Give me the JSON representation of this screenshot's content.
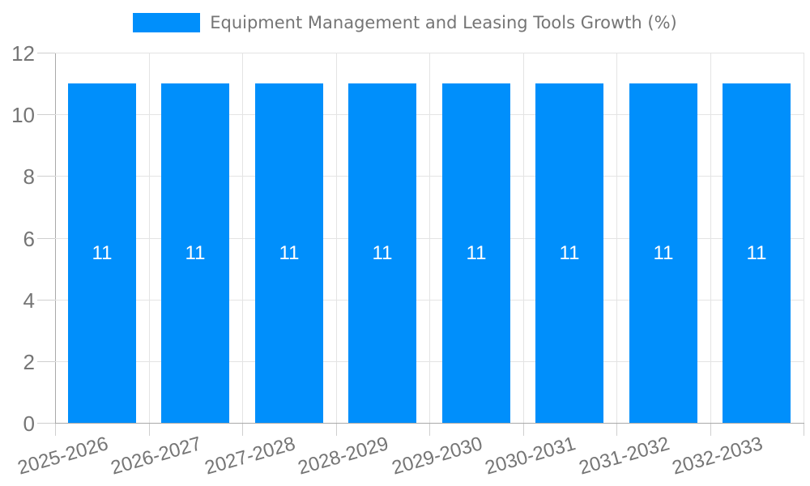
{
  "chart_data": {
    "type": "bar",
    "title": "Equipment Management and Leasing Tools Growth (%)",
    "legend": [
      "Equipment Management and Leasing Tools Growth (%)"
    ],
    "legend_position": "top",
    "categories": [
      "2025-2026",
      "2026-2027",
      "2027-2028",
      "2028-2029",
      "2029-2030",
      "2030-2031",
      "2031-2032",
      "2032-2033"
    ],
    "values": [
      11,
      11,
      11,
      11,
      11,
      11,
      11,
      11
    ],
    "xlabel": "",
    "ylabel": "",
    "ylim": [
      0,
      12
    ],
    "yticks": [
      0,
      2,
      4,
      6,
      8,
      10,
      12
    ],
    "grid": true,
    "bar_value_labels_shown": true,
    "colors": {
      "bar": "#008ffb",
      "value_text": "#ffffff",
      "axis_text": "#757575",
      "legend_text": "#757575",
      "gridline": "#e4e4e4",
      "axis_line": "#a9a9a9",
      "tick": "#cfcfcf",
      "background": "#ffffff"
    }
  }
}
